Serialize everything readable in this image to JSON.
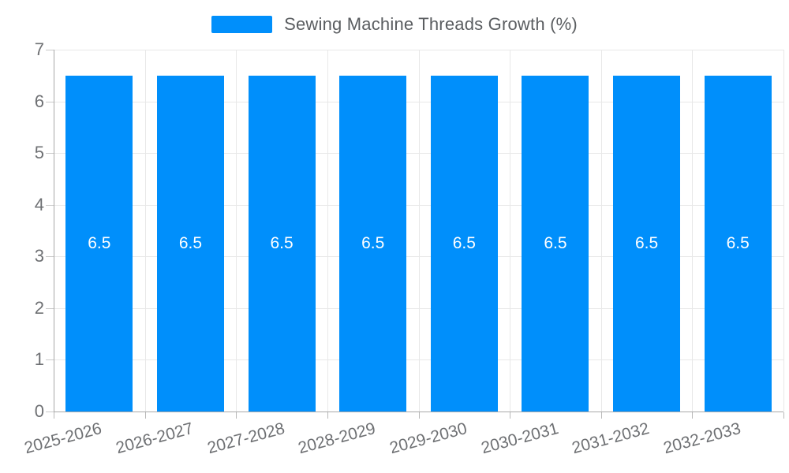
{
  "legend": {
    "label": "Sewing Machine Threads Growth (%)",
    "position": "top"
  },
  "chart_data": {
    "type": "bar",
    "title": "Sewing Machine Threads Growth (%)",
    "categories": [
      "2025-2026",
      "2026-2027",
      "2027-2028",
      "2028-2029",
      "2029-2030",
      "2030-2031",
      "2031-2032",
      "2032-2033"
    ],
    "values": [
      6.5,
      6.5,
      6.5,
      6.5,
      6.5,
      6.5,
      6.5,
      6.5
    ],
    "data_labels": [
      "6.5",
      "6.5",
      "6.5",
      "6.5",
      "6.5",
      "6.5",
      "6.5",
      "6.5"
    ],
    "yticks": [
      0,
      1,
      2,
      3,
      4,
      5,
      6,
      7
    ],
    "ylim": [
      0,
      7
    ],
    "xlabel": "",
    "ylabel": "",
    "grid": true,
    "legend_position": "top"
  },
  "colors": {
    "bar": "#008FFB",
    "grid": "#e8e8e8",
    "axis": "#a8a8a8",
    "tick": "#c9c9c9",
    "x_tick": "#b9b9b9",
    "tick_label": "#6e7073",
    "legend_text": "#5a5d60",
    "data_label": "#ffffff",
    "background": "#ffffff"
  }
}
